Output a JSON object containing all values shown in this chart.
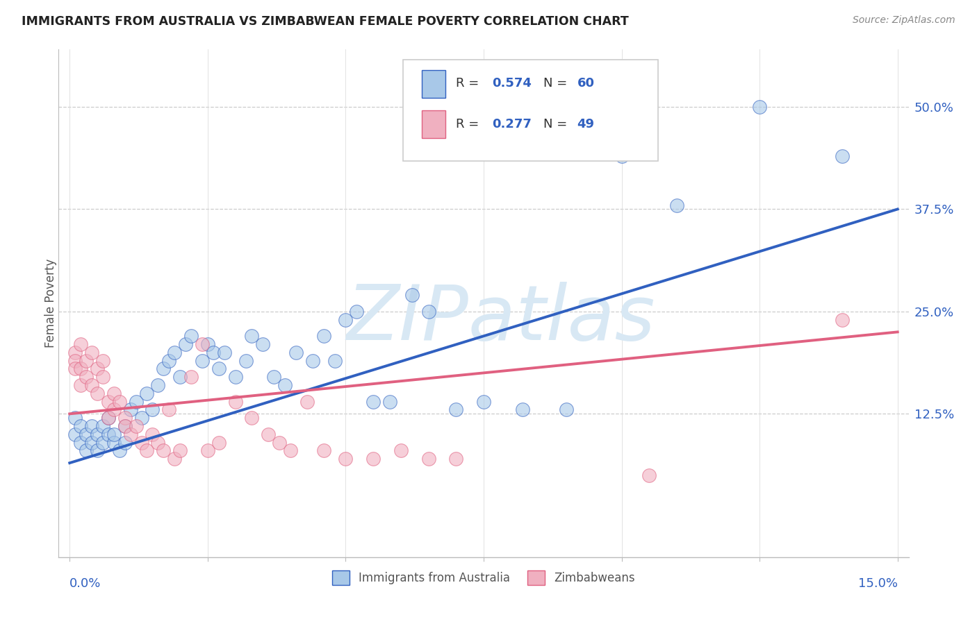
{
  "title": "IMMIGRANTS FROM AUSTRALIA VS ZIMBABWEAN FEMALE POVERTY CORRELATION CHART",
  "source": "Source: ZipAtlas.com",
  "ylabel": "Female Poverty",
  "ytick_labels": [
    "12.5%",
    "25.0%",
    "37.5%",
    "50.0%"
  ],
  "ytick_values": [
    0.125,
    0.25,
    0.375,
    0.5
  ],
  "xlim": [
    -0.002,
    0.152
  ],
  "ylim": [
    -0.05,
    0.57
  ],
  "color_blue": "#a8c8e8",
  "color_pink": "#f0b0c0",
  "color_blue_line": "#3060c0",
  "color_pink_line": "#e06080",
  "color_blue_dark": "#3060c0",
  "watermark_color": "#d8e8f4",
  "line_blue_x0": 0.0,
  "line_blue_y0": 0.065,
  "line_blue_x1": 0.15,
  "line_blue_y1": 0.375,
  "line_pink_x0": 0.0,
  "line_pink_y0": 0.125,
  "line_pink_x1": 0.15,
  "line_pink_y1": 0.225,
  "blue_x": [
    0.001,
    0.001,
    0.002,
    0.002,
    0.003,
    0.003,
    0.004,
    0.004,
    0.005,
    0.005,
    0.006,
    0.006,
    0.007,
    0.007,
    0.008,
    0.008,
    0.009,
    0.01,
    0.01,
    0.011,
    0.012,
    0.013,
    0.014,
    0.015,
    0.016,
    0.017,
    0.018,
    0.019,
    0.02,
    0.021,
    0.022,
    0.024,
    0.025,
    0.026,
    0.027,
    0.028,
    0.03,
    0.032,
    0.033,
    0.035,
    0.037,
    0.039,
    0.041,
    0.044,
    0.046,
    0.048,
    0.05,
    0.052,
    0.055,
    0.058,
    0.062,
    0.065,
    0.07,
    0.075,
    0.082,
    0.09,
    0.1,
    0.11,
    0.125,
    0.14
  ],
  "blue_y": [
    0.12,
    0.1,
    0.11,
    0.09,
    0.1,
    0.08,
    0.09,
    0.11,
    0.1,
    0.08,
    0.11,
    0.09,
    0.1,
    0.12,
    0.09,
    0.1,
    0.08,
    0.11,
    0.09,
    0.13,
    0.14,
    0.12,
    0.15,
    0.13,
    0.16,
    0.18,
    0.19,
    0.2,
    0.17,
    0.21,
    0.22,
    0.19,
    0.21,
    0.2,
    0.18,
    0.2,
    0.17,
    0.19,
    0.22,
    0.21,
    0.17,
    0.16,
    0.2,
    0.19,
    0.22,
    0.19,
    0.24,
    0.25,
    0.14,
    0.14,
    0.27,
    0.25,
    0.13,
    0.14,
    0.13,
    0.13,
    0.44,
    0.38,
    0.5,
    0.44
  ],
  "pink_x": [
    0.001,
    0.001,
    0.001,
    0.002,
    0.002,
    0.002,
    0.003,
    0.003,
    0.004,
    0.004,
    0.005,
    0.005,
    0.006,
    0.006,
    0.007,
    0.007,
    0.008,
    0.008,
    0.009,
    0.01,
    0.01,
    0.011,
    0.012,
    0.013,
    0.014,
    0.015,
    0.016,
    0.017,
    0.018,
    0.019,
    0.02,
    0.022,
    0.024,
    0.025,
    0.027,
    0.03,
    0.033,
    0.036,
    0.038,
    0.04,
    0.043,
    0.046,
    0.05,
    0.055,
    0.06,
    0.065,
    0.07,
    0.105,
    0.14
  ],
  "pink_y": [
    0.2,
    0.19,
    0.18,
    0.21,
    0.18,
    0.16,
    0.19,
    0.17,
    0.2,
    0.16,
    0.18,
    0.15,
    0.19,
    0.17,
    0.14,
    0.12,
    0.15,
    0.13,
    0.14,
    0.12,
    0.11,
    0.1,
    0.11,
    0.09,
    0.08,
    0.1,
    0.09,
    0.08,
    0.13,
    0.07,
    0.08,
    0.17,
    0.21,
    0.08,
    0.09,
    0.14,
    0.12,
    0.1,
    0.09,
    0.08,
    0.14,
    0.08,
    0.07,
    0.07,
    0.08,
    0.07,
    0.07,
    0.05,
    0.24
  ]
}
